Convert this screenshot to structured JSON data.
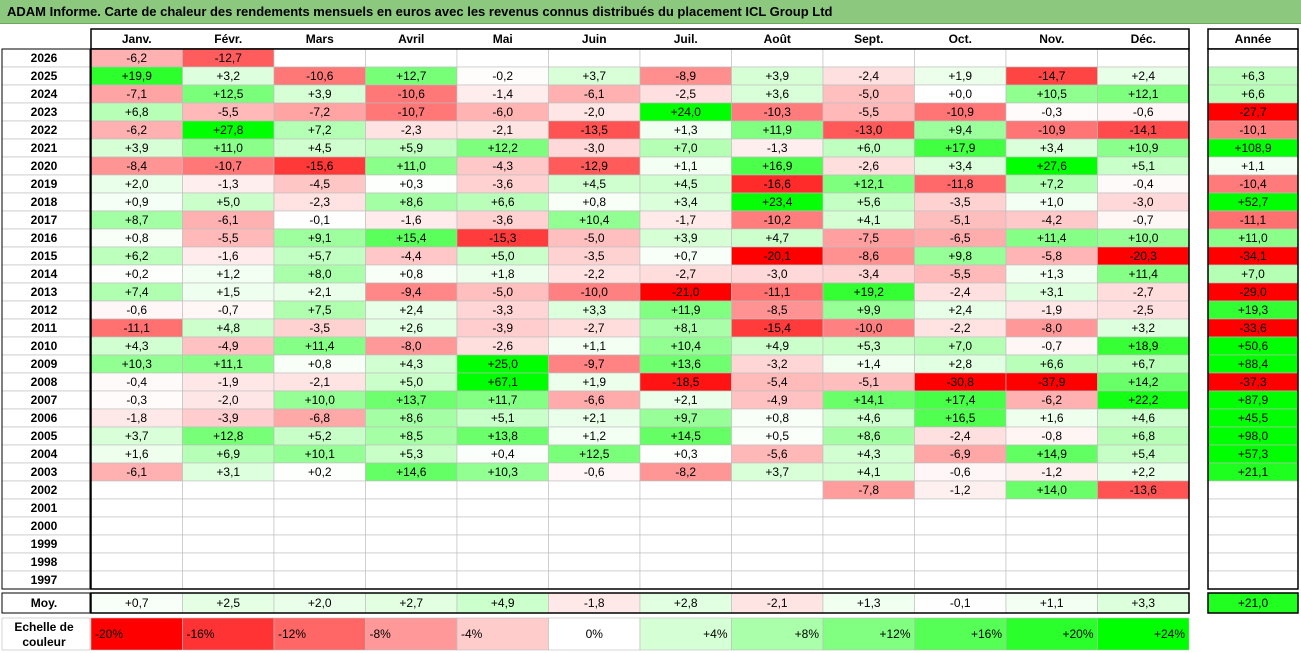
{
  "title": "ADAM Informe. Carte de chaleur des rendements mensuels en euros avec les revenus connus distribués du placement ICL Group Ltd",
  "chart_data": {
    "type": "heatmap",
    "columns": [
      "Janv.",
      "Févr.",
      "Mars",
      "Avril",
      "Mai",
      "Juin",
      "Juil.",
      "Août",
      "Sept.",
      "Oct.",
      "Nov.",
      "Déc."
    ],
    "annual_header": "Année",
    "avg_label": "Moy.",
    "scale_label_line1": "Echelle de",
    "scale_label_line2": "couleur",
    "rows": [
      {
        "year": "2026",
        "values": [
          "-6,2",
          "-12,7",
          "",
          "",
          "",
          "",
          "",
          "",
          "",
          "",
          "",
          ""
        ],
        "annual": ""
      },
      {
        "year": "2025",
        "values": [
          "+19,9",
          "+3,2",
          "-10,6",
          "+12,7",
          "-0,2",
          "+3,7",
          "-8,9",
          "+3,9",
          "-2,4",
          "+1,9",
          "-14,7",
          "+2,4"
        ],
        "annual": "+6,3"
      },
      {
        "year": "2024",
        "values": [
          "-7,1",
          "+12,5",
          "+3,9",
          "-10,6",
          "-1,4",
          "-6,1",
          "-2,5",
          "+3,6",
          "-5,0",
          "+0,0",
          "+10,5",
          "+12,1"
        ],
        "annual": "+6,6"
      },
      {
        "year": "2023",
        "values": [
          "+6,8",
          "-5,5",
          "-7,2",
          "-10,7",
          "-6,0",
          "-2,0",
          "+24,0",
          "-10,3",
          "-5,5",
          "-10,9",
          "-0,3",
          "-0,6"
        ],
        "annual": "-27,7"
      },
      {
        "year": "2022",
        "values": [
          "-6,2",
          "+27,8",
          "+7,2",
          "-2,3",
          "-2,1",
          "-13,5",
          "+1,3",
          "+11,9",
          "-13,0",
          "+9,4",
          "-10,9",
          "-14,1"
        ],
        "annual": "-10,1"
      },
      {
        "year": "2021",
        "values": [
          "+3,9",
          "+11,0",
          "+4,5",
          "+5,9",
          "+12,2",
          "-3,0",
          "+7,0",
          "-1,3",
          "+6,0",
          "+17,9",
          "+3,4",
          "+10,9"
        ],
        "annual": "+108,9"
      },
      {
        "year": "2020",
        "values": [
          "-8,4",
          "-10,7",
          "-15,6",
          "+11,0",
          "-4,3",
          "-12,9",
          "+1,1",
          "+16,9",
          "-2,6",
          "+3,4",
          "+27,6",
          "+5,1"
        ],
        "annual": "+1,1"
      },
      {
        "year": "2019",
        "values": [
          "+2,0",
          "-1,3",
          "-4,5",
          "+0,3",
          "-3,6",
          "+4,5",
          "+4,5",
          "-16,6",
          "+12,1",
          "-11,8",
          "+7,2",
          "-0,4"
        ],
        "annual": "-10,4"
      },
      {
        "year": "2018",
        "values": [
          "+0,9",
          "+5,0",
          "-2,3",
          "+8,6",
          "+6,6",
          "+0,8",
          "+3,4",
          "+23,4",
          "+5,6",
          "-3,5",
          "+1,0",
          "-3,0"
        ],
        "annual": "+52,7"
      },
      {
        "year": "2017",
        "values": [
          "+8,7",
          "-6,1",
          "-0,1",
          "-1,6",
          "-3,6",
          "+10,4",
          "-1,7",
          "-10,2",
          "+4,1",
          "-5,1",
          "-4,2",
          "-0,7"
        ],
        "annual": "-11,1"
      },
      {
        "year": "2016",
        "values": [
          "+0,8",
          "-5,5",
          "+9,1",
          "+15,4",
          "-15,3",
          "-5,0",
          "+3,9",
          "+4,7",
          "-7,5",
          "-6,5",
          "+11,4",
          "+10,0"
        ],
        "annual": "+11,0"
      },
      {
        "year": "2015",
        "values": [
          "+6,2",
          "-1,6",
          "+5,7",
          "-4,4",
          "+5,0",
          "-3,5",
          "+0,7",
          "-20,1",
          "-8,6",
          "+9,8",
          "-5,8",
          "-20,3"
        ],
        "annual": "-34,1"
      },
      {
        "year": "2014",
        "values": [
          "+0,2",
          "+1,2",
          "+8,0",
          "+0,8",
          "+1,8",
          "-2,2",
          "-2,7",
          "-3,0",
          "-3,4",
          "-5,5",
          "+1,3",
          "+11,4"
        ],
        "annual": "+7,0"
      },
      {
        "year": "2013",
        "values": [
          "+7,4",
          "+1,5",
          "+2,1",
          "-9,4",
          "-5,0",
          "-10,0",
          "-21,0",
          "-11,1",
          "+19,2",
          "-2,4",
          "+3,1",
          "-2,7"
        ],
        "annual": "-29,0"
      },
      {
        "year": "2012",
        "values": [
          "-0,6",
          "-0,7",
          "+7,5",
          "+2,4",
          "-3,3",
          "+3,3",
          "+11,9",
          "-8,5",
          "+9,9",
          "+2,4",
          "-1,9",
          "-2,5"
        ],
        "annual": "+19,3"
      },
      {
        "year": "2011",
        "values": [
          "-11,1",
          "+4,8",
          "-3,5",
          "+2,6",
          "-3,9",
          "-2,7",
          "+8,1",
          "-15,4",
          "-10,0",
          "-2,2",
          "-8,0",
          "+3,2"
        ],
        "annual": "-33,6"
      },
      {
        "year": "2010",
        "values": [
          "+4,3",
          "-4,9",
          "+11,4",
          "-8,0",
          "-2,6",
          "+1,1",
          "+10,4",
          "+4,9",
          "+5,3",
          "+7,0",
          "-0,7",
          "+18,9"
        ],
        "annual": "+50,6"
      },
      {
        "year": "2009",
        "values": [
          "+10,3",
          "+11,1",
          "+0,8",
          "+4,3",
          "+25,0",
          "-9,7",
          "+13,6",
          "-3,2",
          "+1,4",
          "+2,8",
          "+6,6",
          "+6,7"
        ],
        "annual": "+88,4"
      },
      {
        "year": "2008",
        "values": [
          "-0,4",
          "-1,9",
          "-2,1",
          "+5,0",
          "+67,1",
          "+1,9",
          "-18,5",
          "-5,4",
          "-5,1",
          "-30,8",
          "-37,9",
          "+14,2"
        ],
        "annual": "-37,3"
      },
      {
        "year": "2007",
        "values": [
          "-0,3",
          "-2,0",
          "+10,0",
          "+13,7",
          "+11,7",
          "-6,6",
          "+2,1",
          "-4,9",
          "+14,1",
          "+17,4",
          "-6,2",
          "+22,2"
        ],
        "annual": "+87,9"
      },
      {
        "year": "2006",
        "values": [
          "-1,8",
          "-3,9",
          "-6,8",
          "+8,6",
          "+5,1",
          "+2,1",
          "+9,7",
          "+0,8",
          "+4,6",
          "+16,5",
          "+1,6",
          "+4,6"
        ],
        "annual": "+45,5"
      },
      {
        "year": "2005",
        "values": [
          "+3,7",
          "+12,8",
          "+5,2",
          "+8,5",
          "+13,8",
          "+1,2",
          "+14,5",
          "+0,5",
          "+8,6",
          "-2,4",
          "-0,8",
          "+6,8"
        ],
        "annual": "+98,0"
      },
      {
        "year": "2004",
        "values": [
          "+1,6",
          "+6,9",
          "+10,1",
          "+5,3",
          "+0,4",
          "+12,5",
          "+0,3",
          "-5,6",
          "+4,3",
          "-6,9",
          "+14,9",
          "+5,4"
        ],
        "annual": "+57,3"
      },
      {
        "year": "2003",
        "values": [
          "-6,1",
          "+3,1",
          "+0,2",
          "+14,6",
          "+10,3",
          "-0,6",
          "-8,2",
          "+3,7",
          "+4,1",
          "-0,6",
          "-1,2",
          "+2,2"
        ],
        "annual": "+21,1"
      },
      {
        "year": "2002",
        "values": [
          "",
          "",
          "",
          "",
          "",
          "",
          "",
          "",
          "-7,8",
          "-1,2",
          "+14,0",
          "-13,6"
        ],
        "annual": ""
      },
      {
        "year": "2001",
        "values": [
          "",
          "",
          "",
          "",
          "",
          "",
          "",
          "",
          "",
          "",
          "",
          ""
        ],
        "annual": ""
      },
      {
        "year": "2000",
        "values": [
          "",
          "",
          "",
          "",
          "",
          "",
          "",
          "",
          "",
          "",
          "",
          ""
        ],
        "annual": ""
      },
      {
        "year": "1999",
        "values": [
          "",
          "",
          "",
          "",
          "",
          "",
          "",
          "",
          "",
          "",
          "",
          ""
        ],
        "annual": ""
      },
      {
        "year": "1998",
        "values": [
          "",
          "",
          "",
          "",
          "",
          "",
          "",
          "",
          "",
          "",
          "",
          ""
        ],
        "annual": ""
      },
      {
        "year": "1997",
        "values": [
          "",
          "",
          "",
          "",
          "",
          "",
          "",
          "",
          "",
          "",
          "",
          ""
        ],
        "annual": ""
      }
    ],
    "averages": [
      "+0,7",
      "+2,5",
      "+2,0",
      "+2,7",
      "+4,9",
      "-1,8",
      "+2,8",
      "-2,1",
      "+1,3",
      "-0,1",
      "+1,1",
      "+3,3"
    ],
    "annual_average": "+21,0",
    "scale": [
      {
        "label": "-20%",
        "value": -20
      },
      {
        "label": "-16%",
        "value": -16
      },
      {
        "label": "-12%",
        "value": -12
      },
      {
        "label": "-8%",
        "value": -8
      },
      {
        "label": "-4%",
        "value": -4
      },
      {
        "label": "0%",
        "value": 0
      },
      {
        "label": "+4%",
        "value": 4
      },
      {
        "label": "+8%",
        "value": 8
      },
      {
        "label": "+12%",
        "value": 12
      },
      {
        "label": "+16%",
        "value": 16
      },
      {
        "label": "+20%",
        "value": 20
      },
      {
        "label": "+24%",
        "value": 24
      }
    ],
    "colors": {
      "negative": "#ff0000",
      "neutral": "#ffffff",
      "positive": "#00ff00",
      "title_bar": "#8cc97e"
    }
  }
}
